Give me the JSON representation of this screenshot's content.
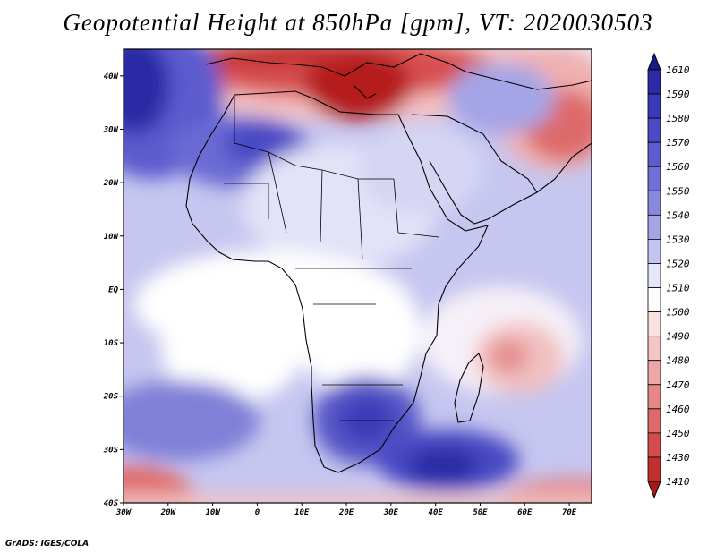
{
  "title": "Geopotential Height at 850hPa [gpm], VT: 2020030503",
  "credit": "GrADS: IGES/COLA",
  "map": {
    "lon_range": [
      -30,
      75
    ],
    "lat_range": [
      -40,
      45
    ],
    "lon_labels": [
      "30W",
      "20W",
      "10W",
      "0",
      "10E",
      "20E",
      "30E",
      "40E",
      "50E",
      "60E",
      "70E"
    ],
    "lat_labels": [
      "40N",
      "30N",
      "20N",
      "10N",
      "EQ",
      "10S",
      "20S",
      "30S",
      "40S"
    ]
  },
  "colorbar": {
    "levels": [
      "1610",
      "1590",
      "1580",
      "1570",
      "1560",
      "1550",
      "1540",
      "1530",
      "1520",
      "1510",
      "1500",
      "1490",
      "1480",
      "1470",
      "1460",
      "1450",
      "1430",
      "1410"
    ],
    "colors": [
      "#1a1a8c",
      "#2b2ba6",
      "#3a3ab8",
      "#4a4ac4",
      "#5c5ccf",
      "#7070d6",
      "#8888dd",
      "#a4a4e6",
      "#c4c4f0",
      "#e6e6fa",
      "#ffffff",
      "#fbe0e0",
      "#f5c4c4",
      "#eea6a6",
      "#e68888",
      "#dd6a6a",
      "#d24c4c",
      "#c12f2f",
      "#a81818"
    ]
  }
}
